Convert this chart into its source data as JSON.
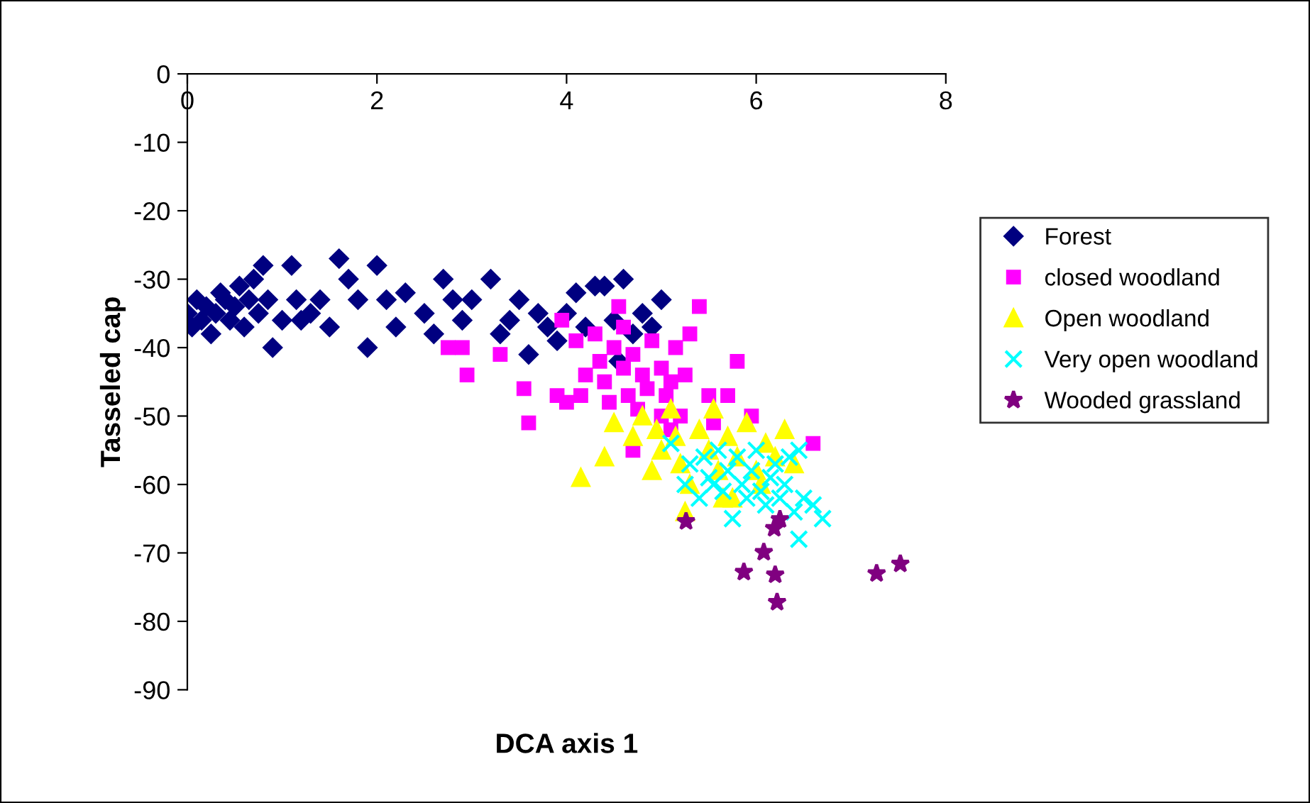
{
  "chart_data": {
    "type": "scatter",
    "xlabel": "DCA axis 1",
    "ylabel": "Tasseled cap",
    "xlim": [
      0,
      8
    ],
    "ylim": [
      -90,
      0
    ],
    "xticks": [
      0,
      2,
      4,
      6,
      8
    ],
    "yticks": [
      -90,
      -80,
      -70,
      -60,
      -50,
      -40,
      -30,
      -20,
      -10,
      0
    ],
    "grid": false,
    "legend": "right",
    "series": [
      {
        "name": "Forest",
        "color": "#000080",
        "marker": "diamond",
        "x": [
          0.0,
          0.05,
          0.1,
          0.15,
          0.2,
          0.25,
          0.3,
          0.35,
          0.4,
          0.45,
          0.5,
          0.55,
          0.6,
          0.65,
          0.7,
          0.75,
          0.8,
          0.85,
          0.9,
          1.0,
          1.1,
          1.15,
          1.2,
          1.3,
          1.4,
          1.5,
          1.6,
          1.7,
          1.8,
          1.9,
          2.0,
          2.1,
          2.2,
          2.3,
          2.5,
          2.6,
          2.7,
          2.8,
          2.9,
          3.0,
          3.2,
          3.3,
          3.4,
          3.5,
          3.6,
          3.7,
          3.9,
          4.0,
          4.1,
          4.2,
          4.3,
          4.4,
          4.5,
          4.6,
          4.7,
          4.8,
          4.9,
          5.0,
          4.55,
          3.8
        ],
        "values": [
          -35,
          -37,
          -33,
          -36,
          -34,
          -38,
          -35,
          -32,
          -33,
          -36,
          -34,
          -31,
          -37,
          -33,
          -30,
          -35,
          -28,
          -33,
          -40,
          -36,
          -28,
          -33,
          -36,
          -35,
          -33,
          -37,
          -27,
          -30,
          -33,
          -40,
          -28,
          -33,
          -37,
          -32,
          -35,
          -38,
          -30,
          -33,
          -36,
          -33,
          -30,
          -38,
          -36,
          -33,
          -41,
          -35,
          -39,
          -35,
          -32,
          -37,
          -31,
          -31,
          -36,
          -30,
          -38,
          -35,
          -37,
          -33,
          -42,
          -37
        ]
      },
      {
        "name": "closed woodland",
        "color": "#ff00ff",
        "marker": "square",
        "x": [
          2.75,
          2.9,
          2.95,
          3.3,
          3.55,
          3.6,
          3.9,
          3.95,
          4.0,
          4.1,
          4.15,
          4.2,
          4.3,
          4.35,
          4.4,
          4.5,
          4.55,
          4.6,
          4.65,
          4.7,
          4.75,
          4.8,
          4.85,
          4.9,
          5.0,
          5.05,
          5.1,
          5.15,
          5.2,
          5.25,
          5.3,
          5.4,
          5.5,
          5.55,
          5.7,
          5.8,
          5.95,
          6.6,
          4.7,
          4.45,
          5.0,
          4.6,
          5.1
        ],
        "values": [
          -40,
          -40,
          -44,
          -41,
          -46,
          -51,
          -47,
          -36,
          -48,
          -39,
          -47,
          -44,
          -38,
          -42,
          -45,
          -40,
          -34,
          -43,
          -47,
          -41,
          -49,
          -44,
          -46,
          -39,
          -43,
          -47,
          -45,
          -40,
          -50,
          -44,
          -38,
          -34,
          -47,
          -51,
          -47,
          -42,
          -50,
          -54,
          -55,
          -48,
          -50,
          -37,
          -52
        ]
      },
      {
        "name": "Open woodland",
        "color": "#ffff00",
        "marker": "triangle",
        "x": [
          4.15,
          4.4,
          4.5,
          4.7,
          4.8,
          4.9,
          5.0,
          5.1,
          5.15,
          5.2,
          5.3,
          5.4,
          5.5,
          5.55,
          5.6,
          5.7,
          5.75,
          5.8,
          5.9,
          6.0,
          6.1,
          6.2,
          6.3,
          6.4,
          4.95,
          5.25,
          5.65,
          6.05
        ],
        "values": [
          -59,
          -56,
          -51,
          -53,
          -50,
          -58,
          -55,
          -49,
          -53,
          -57,
          -60,
          -52,
          -55,
          -49,
          -58,
          -53,
          -62,
          -56,
          -51,
          -58,
          -54,
          -56,
          -52,
          -57,
          -52,
          -64,
          -62,
          -60
        ]
      },
      {
        "name": "Very open woodland",
        "color": "#00ffff",
        "marker": "cross",
        "x": [
          5.1,
          5.25,
          5.3,
          5.4,
          5.45,
          5.5,
          5.6,
          5.65,
          5.7,
          5.75,
          5.8,
          5.85,
          5.9,
          5.95,
          6.0,
          6.05,
          6.1,
          6.15,
          6.2,
          6.25,
          6.3,
          6.35,
          6.4,
          6.45,
          6.5,
          6.6,
          6.7,
          6.45,
          5.55
        ],
        "values": [
          -54,
          -60,
          -57,
          -62,
          -56,
          -59,
          -55,
          -61,
          -58,
          -65,
          -56,
          -60,
          -62,
          -58,
          -55,
          -61,
          -63,
          -59,
          -57,
          -62,
          -60,
          -56,
          -64,
          -68,
          -62,
          -63,
          -65,
          -55,
          -60
        ]
      },
      {
        "name": "Wooded grassland",
        "color": "#800080",
        "marker": "star",
        "x": [
          5.26,
          6.19,
          6.25,
          6.08,
          5.87,
          6.2,
          6.22,
          7.27,
          7.52
        ],
        "values": [
          -65.4,
          -66.4,
          -65.1,
          -69.9,
          -72.8,
          -73.2,
          -77.2,
          -73.0,
          -71.6
        ]
      }
    ]
  }
}
